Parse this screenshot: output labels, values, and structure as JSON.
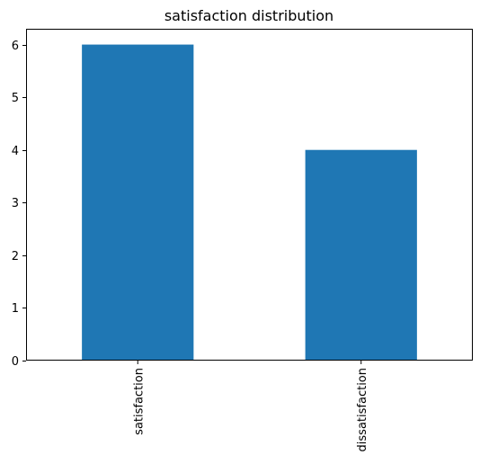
{
  "chart_data": {
    "type": "bar",
    "title": "satisfaction distribution",
    "categories": [
      "satisfaction",
      "dissatisfaction"
    ],
    "values": [
      6,
      4
    ],
    "xlabel": "",
    "ylabel": "",
    "ylim": [
      0,
      6.3
    ],
    "yticks": [
      0,
      1,
      2,
      3,
      4,
      5,
      6
    ],
    "bar_color": "#1f77b4",
    "grid": false,
    "legend": "none"
  }
}
